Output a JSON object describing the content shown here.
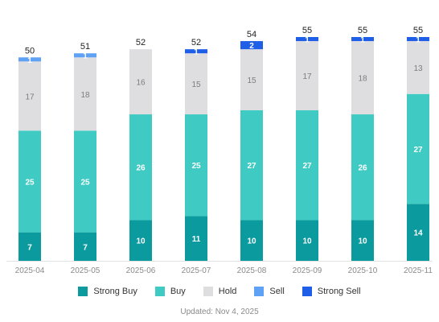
{
  "chart_data": {
    "type": "bar",
    "stacked": true,
    "categories": [
      "2025-04",
      "2025-05",
      "2025-06",
      "2025-07",
      "2025-08",
      "2025-09",
      "2025-10",
      "2025-11"
    ],
    "series": [
      {
        "name": "Strong Buy",
        "color": "#0b9b9e",
        "values": [
          7,
          7,
          10,
          11,
          10,
          10,
          10,
          14
        ]
      },
      {
        "name": "Buy",
        "color": "#3fcbc3",
        "values": [
          25,
          25,
          26,
          25,
          27,
          27,
          26,
          27
        ]
      },
      {
        "name": "Hold",
        "color": "#dedde0",
        "values": [
          17,
          18,
          16,
          15,
          15,
          17,
          18,
          13
        ]
      },
      {
        "name": "Sell",
        "color": "#5ea1f5",
        "values": [
          1,
          1,
          0,
          0,
          0,
          0,
          0,
          0
        ]
      },
      {
        "name": "Strong Sell",
        "color": "#1f5fe8",
        "values": [
          0,
          0,
          0,
          1,
          2,
          1,
          1,
          1
        ]
      }
    ],
    "totals": [
      50,
      51,
      52,
      52,
      54,
      55,
      55,
      55
    ]
  },
  "legend": {
    "items": [
      {
        "name": "Strong Buy",
        "color": "#0b9b9e"
      },
      {
        "name": "Buy",
        "color": "#3fcbc3"
      },
      {
        "name": "Hold",
        "color": "#dedde0"
      },
      {
        "name": "Sell",
        "color": "#5ea1f5"
      },
      {
        "name": "Strong Sell",
        "color": "#1f5fe8"
      }
    ]
  },
  "footer": {
    "updated": "Updated: Nov 4, 2025"
  }
}
